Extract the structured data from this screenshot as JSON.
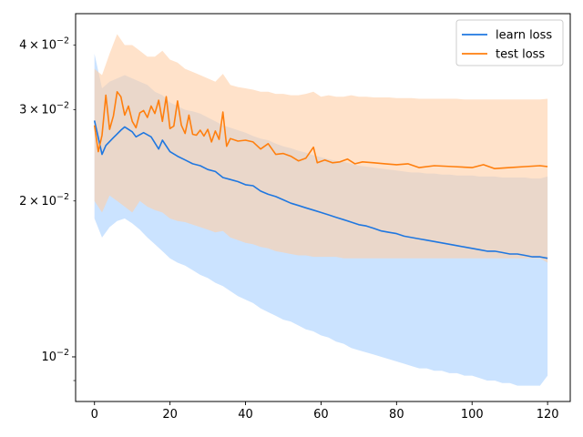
{
  "chart_data": {
    "type": "line",
    "title": "",
    "xlabel": "",
    "ylabel": "",
    "x_scale": "linear",
    "y_scale": "log",
    "xlim": [
      -5,
      126
    ],
    "ylim": [
      0.0082,
      0.046
    ],
    "grid": false,
    "legend_position": "top-right",
    "x_ticks": [
      {
        "value": 0,
        "label": "0"
      },
      {
        "value": 20,
        "label": "20"
      },
      {
        "value": 40,
        "label": "40"
      },
      {
        "value": 60,
        "label": "60"
      },
      {
        "value": 80,
        "label": "80"
      },
      {
        "value": 100,
        "label": "100"
      },
      {
        "value": 120,
        "label": "120"
      }
    ],
    "y_major_ticks": [
      {
        "value": 0.01,
        "base": "10",
        "exp": "−2"
      }
    ],
    "y_minor_labeled_ticks": [
      {
        "value": 0.02,
        "mant": "2",
        "base": "10",
        "exp": "−2"
      },
      {
        "value": 0.03,
        "mant": "3",
        "base": "10",
        "exp": "−2"
      },
      {
        "value": 0.04,
        "mant": "4",
        "base": "10",
        "exp": "−2"
      }
    ],
    "y_minor_unlabeled_ticks": [
      0.009
    ],
    "series": [
      {
        "name": "learn loss",
        "color": "#1f77e0",
        "band_color": "#a9d0ff",
        "band_opacity": 0.6,
        "points": [
          [
            0,
            0.0286
          ],
          [
            2,
            0.0246
          ],
          [
            3,
            0.0256
          ],
          [
            5,
            0.0265
          ],
          [
            7,
            0.0274
          ],
          [
            8,
            0.0278
          ],
          [
            10,
            0.0272
          ],
          [
            11,
            0.0266
          ],
          [
            13,
            0.0271
          ],
          [
            15,
            0.0266
          ],
          [
            17,
            0.0252
          ],
          [
            18,
            0.0262
          ],
          [
            20,
            0.0249
          ],
          [
            22,
            0.0244
          ],
          [
            24,
            0.024
          ],
          [
            26,
            0.0236
          ],
          [
            28,
            0.0234
          ],
          [
            30,
            0.023
          ],
          [
            32,
            0.0228
          ],
          [
            34,
            0.0222
          ],
          [
            36,
            0.022
          ],
          [
            38,
            0.0218
          ],
          [
            40,
            0.0215
          ],
          [
            42,
            0.0214
          ],
          [
            44,
            0.0209
          ],
          [
            46,
            0.0206
          ],
          [
            48,
            0.0204
          ],
          [
            50,
            0.0201
          ],
          [
            52,
            0.0198
          ],
          [
            54,
            0.0196
          ],
          [
            56,
            0.0194
          ],
          [
            58,
            0.0192
          ],
          [
            60,
            0.019
          ],
          [
            62,
            0.0188
          ],
          [
            64,
            0.0186
          ],
          [
            66,
            0.0184
          ],
          [
            68,
            0.0182
          ],
          [
            70,
            0.018
          ],
          [
            72,
            0.0179
          ],
          [
            74,
            0.0177
          ],
          [
            76,
            0.0175
          ],
          [
            78,
            0.0174
          ],
          [
            80,
            0.0173
          ],
          [
            82,
            0.0171
          ],
          [
            84,
            0.017
          ],
          [
            86,
            0.0169
          ],
          [
            88,
            0.0168
          ],
          [
            90,
            0.0167
          ],
          [
            92,
            0.0166
          ],
          [
            94,
            0.0165
          ],
          [
            96,
            0.0164
          ],
          [
            98,
            0.0163
          ],
          [
            100,
            0.0162
          ],
          [
            102,
            0.0161
          ],
          [
            104,
            0.016
          ],
          [
            106,
            0.016
          ],
          [
            108,
            0.0159
          ],
          [
            110,
            0.0158
          ],
          [
            112,
            0.0158
          ],
          [
            114,
            0.0157
          ],
          [
            116,
            0.0156
          ],
          [
            118,
            0.0156
          ],
          [
            120,
            0.0155
          ]
        ],
        "band": [
          [
            0,
            0.0185,
            0.0385
          ],
          [
            2,
            0.017,
            0.033
          ],
          [
            4,
            0.0178,
            0.034
          ],
          [
            6,
            0.0183,
            0.0345
          ],
          [
            8,
            0.0185,
            0.035
          ],
          [
            10,
            0.0181,
            0.0345
          ],
          [
            12,
            0.0176,
            0.034
          ],
          [
            14,
            0.017,
            0.0335
          ],
          [
            16,
            0.0165,
            0.0325
          ],
          [
            18,
            0.016,
            0.032
          ],
          [
            20,
            0.0155,
            0.031
          ],
          [
            22,
            0.0152,
            0.0305
          ],
          [
            24,
            0.015,
            0.03
          ],
          [
            26,
            0.0147,
            0.0298
          ],
          [
            28,
            0.0144,
            0.0295
          ],
          [
            30,
            0.0142,
            0.029
          ],
          [
            32,
            0.0139,
            0.0285
          ],
          [
            34,
            0.0137,
            0.028
          ],
          [
            36,
            0.0134,
            0.0277
          ],
          [
            38,
            0.0131,
            0.0274
          ],
          [
            40,
            0.0129,
            0.0271
          ],
          [
            42,
            0.0127,
            0.0267
          ],
          [
            44,
            0.0124,
            0.0264
          ],
          [
            46,
            0.0122,
            0.0262
          ],
          [
            48,
            0.012,
            0.0258
          ],
          [
            50,
            0.0118,
            0.0255
          ],
          [
            52,
            0.0117,
            0.0253
          ],
          [
            54,
            0.0115,
            0.025
          ],
          [
            56,
            0.0113,
            0.0248
          ],
          [
            58,
            0.0112,
            0.0245
          ],
          [
            60,
            0.011,
            0.0243
          ],
          [
            62,
            0.0109,
            0.0241
          ],
          [
            64,
            0.0107,
            0.0239
          ],
          [
            66,
            0.0106,
            0.0238
          ],
          [
            68,
            0.0104,
            0.0236
          ],
          [
            70,
            0.0103,
            0.0234
          ],
          [
            72,
            0.0102,
            0.0233
          ],
          [
            74,
            0.0101,
            0.0232
          ],
          [
            76,
            0.01,
            0.0231
          ],
          [
            78,
            0.0099,
            0.023
          ],
          [
            80,
            0.0098,
            0.0229
          ],
          [
            82,
            0.0097,
            0.0228
          ],
          [
            84,
            0.0096,
            0.0227
          ],
          [
            86,
            0.0095,
            0.0227
          ],
          [
            88,
            0.0095,
            0.0226
          ],
          [
            90,
            0.0094,
            0.0226
          ],
          [
            92,
            0.0094,
            0.0225
          ],
          [
            94,
            0.0093,
            0.0225
          ],
          [
            96,
            0.0093,
            0.0224
          ],
          [
            98,
            0.0092,
            0.0224
          ],
          [
            100,
            0.0092,
            0.0224
          ],
          [
            102,
            0.0091,
            0.0223
          ],
          [
            104,
            0.009,
            0.0223
          ],
          [
            106,
            0.009,
            0.0223
          ],
          [
            108,
            0.0089,
            0.0222
          ],
          [
            110,
            0.0089,
            0.0222
          ],
          [
            112,
            0.0088,
            0.0222
          ],
          [
            114,
            0.0088,
            0.0222
          ],
          [
            116,
            0.0088,
            0.0221
          ],
          [
            118,
            0.0088,
            0.0221
          ],
          [
            120,
            0.0092,
            0.0223
          ]
        ]
      },
      {
        "name": "test loss",
        "color": "#ff7f0e",
        "band_color": "#ffcfa6",
        "band_opacity": 0.6,
        "points": [
          [
            0,
            0.028
          ],
          [
            1,
            0.0249
          ],
          [
            2,
            0.0268
          ],
          [
            3,
            0.032
          ],
          [
            4,
            0.0275
          ],
          [
            5,
            0.0292
          ],
          [
            6,
            0.0325
          ],
          [
            7,
            0.0318
          ],
          [
            8,
            0.0293
          ],
          [
            9,
            0.0305
          ],
          [
            10,
            0.0285
          ],
          [
            11,
            0.0277
          ],
          [
            12,
            0.0296
          ],
          [
            13,
            0.0299
          ],
          [
            14,
            0.029
          ],
          [
            15,
            0.0305
          ],
          [
            16,
            0.0295
          ],
          [
            17,
            0.0313
          ],
          [
            18,
            0.0285
          ],
          [
            19,
            0.0318
          ],
          [
            20,
            0.0276
          ],
          [
            21,
            0.0279
          ],
          [
            22,
            0.0312
          ],
          [
            23,
            0.028
          ],
          [
            24,
            0.027
          ],
          [
            25,
            0.0293
          ],
          [
            26,
            0.0269
          ],
          [
            27,
            0.0268
          ],
          [
            28,
            0.0274
          ],
          [
            29,
            0.0267
          ],
          [
            30,
            0.0275
          ],
          [
            31,
            0.026
          ],
          [
            32,
            0.0273
          ],
          [
            33,
            0.0263
          ],
          [
            34,
            0.0297
          ],
          [
            35,
            0.0255
          ],
          [
            36,
            0.0264
          ],
          [
            38,
            0.0261
          ],
          [
            40,
            0.0262
          ],
          [
            42,
            0.026
          ],
          [
            44,
            0.0252
          ],
          [
            46,
            0.0258
          ],
          [
            48,
            0.0246
          ],
          [
            50,
            0.0247
          ],
          [
            52,
            0.0244
          ],
          [
            54,
            0.0239
          ],
          [
            56,
            0.0242
          ],
          [
            58,
            0.0254
          ],
          [
            59,
            0.0237
          ],
          [
            61,
            0.024
          ],
          [
            63,
            0.0237
          ],
          [
            65,
            0.0238
          ],
          [
            67,
            0.0241
          ],
          [
            69,
            0.0236
          ],
          [
            71,
            0.0238
          ],
          [
            74,
            0.0237
          ],
          [
            77,
            0.0236
          ],
          [
            80,
            0.0235
          ],
          [
            83,
            0.0236
          ],
          [
            86,
            0.0232
          ],
          [
            90,
            0.0234
          ],
          [
            95,
            0.0233
          ],
          [
            100,
            0.0232
          ],
          [
            103,
            0.0235
          ],
          [
            106,
            0.0231
          ],
          [
            110,
            0.0232
          ],
          [
            114,
            0.0233
          ],
          [
            118,
            0.0234
          ],
          [
            120,
            0.0233
          ]
        ],
        "band": [
          [
            0,
            0.02,
            0.036
          ],
          [
            2,
            0.019,
            0.035
          ],
          [
            4,
            0.0205,
            0.0385
          ],
          [
            6,
            0.02,
            0.042
          ],
          [
            8,
            0.0195,
            0.04
          ],
          [
            10,
            0.019,
            0.04
          ],
          [
            12,
            0.02,
            0.039
          ],
          [
            14,
            0.0195,
            0.038
          ],
          [
            16,
            0.0192,
            0.038
          ],
          [
            18,
            0.019,
            0.039
          ],
          [
            20,
            0.0185,
            0.0375
          ],
          [
            22,
            0.0183,
            0.037
          ],
          [
            24,
            0.0182,
            0.036
          ],
          [
            26,
            0.018,
            0.0355
          ],
          [
            28,
            0.0178,
            0.035
          ],
          [
            30,
            0.0176,
            0.0345
          ],
          [
            32,
            0.0174,
            0.034
          ],
          [
            34,
            0.0175,
            0.0352
          ],
          [
            36,
            0.017,
            0.0335
          ],
          [
            38,
            0.0168,
            0.0332
          ],
          [
            40,
            0.0166,
            0.033
          ],
          [
            42,
            0.0165,
            0.0328
          ],
          [
            44,
            0.0163,
            0.0325
          ],
          [
            46,
            0.0162,
            0.0325
          ],
          [
            48,
            0.016,
            0.0322
          ],
          [
            50,
            0.0159,
            0.0322
          ],
          [
            52,
            0.0158,
            0.032
          ],
          [
            54,
            0.0157,
            0.032
          ],
          [
            56,
            0.0157,
            0.0322
          ],
          [
            58,
            0.0156,
            0.0325
          ],
          [
            60,
            0.0156,
            0.0318
          ],
          [
            62,
            0.0156,
            0.032
          ],
          [
            64,
            0.0156,
            0.0318
          ],
          [
            66,
            0.0155,
            0.0318
          ],
          [
            68,
            0.0155,
            0.032
          ],
          [
            70,
            0.0155,
            0.0318
          ],
          [
            72,
            0.0155,
            0.0318
          ],
          [
            74,
            0.0155,
            0.0317
          ],
          [
            76,
            0.0155,
            0.0317
          ],
          [
            78,
            0.0155,
            0.0317
          ],
          [
            80,
            0.0155,
            0.0316
          ],
          [
            82,
            0.0155,
            0.0316
          ],
          [
            84,
            0.0155,
            0.0316
          ],
          [
            86,
            0.0155,
            0.0315
          ],
          [
            88,
            0.0155,
            0.0315
          ],
          [
            90,
            0.0155,
            0.0315
          ],
          [
            92,
            0.0155,
            0.0315
          ],
          [
            94,
            0.0155,
            0.0315
          ],
          [
            96,
            0.0155,
            0.0315
          ],
          [
            98,
            0.0155,
            0.0314
          ],
          [
            100,
            0.0155,
            0.0314
          ],
          [
            102,
            0.0155,
            0.0314
          ],
          [
            104,
            0.0155,
            0.0314
          ],
          [
            106,
            0.0155,
            0.0314
          ],
          [
            108,
            0.0155,
            0.0314
          ],
          [
            110,
            0.0155,
            0.0314
          ],
          [
            112,
            0.0155,
            0.0314
          ],
          [
            114,
            0.0155,
            0.0314
          ],
          [
            116,
            0.0155,
            0.0314
          ],
          [
            118,
            0.0155,
            0.0314
          ],
          [
            120,
            0.0152,
            0.0315
          ]
        ]
      }
    ]
  }
}
